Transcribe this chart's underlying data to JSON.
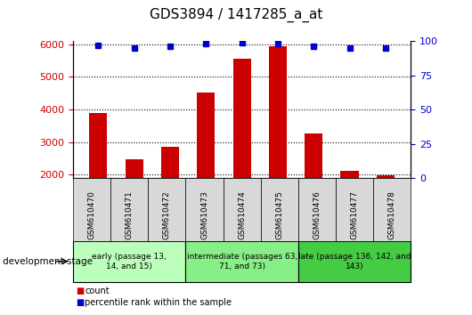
{
  "title": "GDS3894 / 1417285_a_at",
  "samples": [
    "GSM610470",
    "GSM610471",
    "GSM610472",
    "GSM610473",
    "GSM610474",
    "GSM610475",
    "GSM610476",
    "GSM610477",
    "GSM610478"
  ],
  "counts": [
    3900,
    2460,
    2850,
    4530,
    5550,
    5930,
    3270,
    2120,
    1980
  ],
  "percentiles": [
    97,
    95,
    96,
    98,
    99,
    98,
    96,
    95,
    95
  ],
  "ylim_left": [
    1900,
    6100
  ],
  "ylim_right": [
    0,
    100
  ],
  "yticks_left": [
    2000,
    3000,
    4000,
    5000,
    6000
  ],
  "yticks_right": [
    0,
    25,
    50,
    75,
    100
  ],
  "groups": [
    {
      "label": "early (passage 13,\n14, and 15)",
      "start": 0,
      "end": 3,
      "color": "#bbffbb"
    },
    {
      "label": "intermediate (passages 63,\n71, and 73)",
      "start": 3,
      "end": 6,
      "color": "#88ee88"
    },
    {
      "label": "late (passage 136, 142, and\n143)",
      "start": 6,
      "end": 9,
      "color": "#44cc44"
    }
  ],
  "bar_color": "#cc0000",
  "dot_color": "#0000cc",
  "bar_width": 0.5,
  "grid_color": "#000000",
  "tick_label_color_left": "#cc0000",
  "tick_label_color_right": "#0000cc",
  "xtick_bg_color": "#d8d8d8",
  "dev_stage_label": "development stage",
  "legend_count_label": "count",
  "legend_percentile_label": "percentile rank within the sample"
}
